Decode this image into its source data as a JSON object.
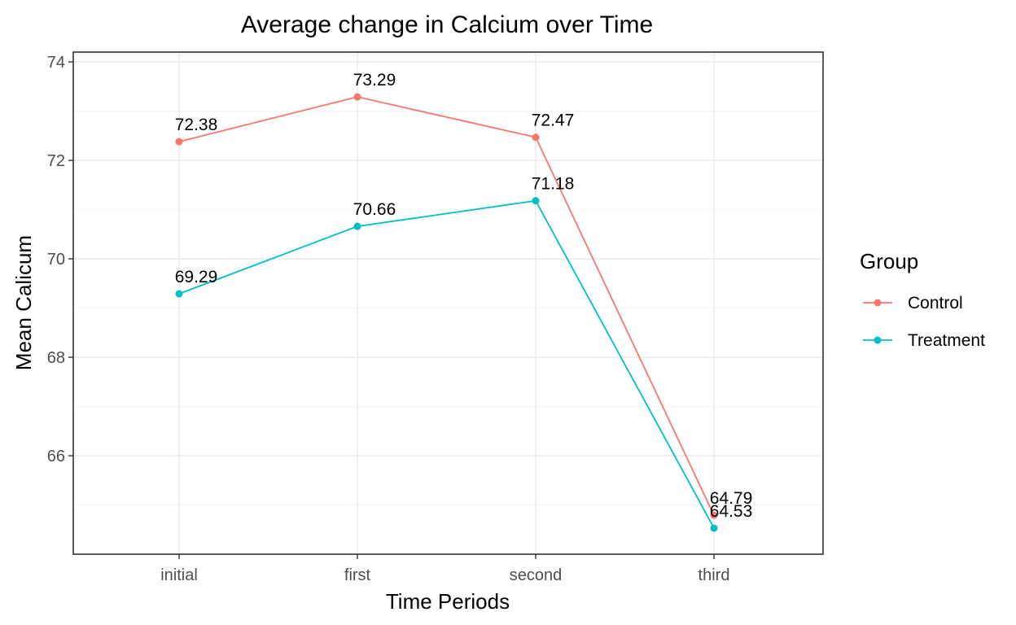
{
  "chart_data": {
    "type": "line",
    "title": "Average change in Calcium over Time",
    "xlabel": "Time Periods",
    "ylabel": "Mean Calicum",
    "categories": [
      "initial",
      "first",
      "second",
      "third"
    ],
    "ylim": [
      64.0,
      74.2
    ],
    "yticks": [
      66,
      68,
      70,
      72,
      74
    ],
    "grid": true,
    "legend": {
      "title": "Group",
      "position": "right"
    },
    "series": [
      {
        "name": "Control",
        "color": "#f8766d",
        "values": [
          72.38,
          73.29,
          72.47,
          64.79
        ],
        "labels": [
          "72.38",
          "73.29",
          "72.47",
          "64.79"
        ]
      },
      {
        "name": "Treatment",
        "color": "#00bfc4",
        "values": [
          69.29,
          70.66,
          71.18,
          64.53
        ],
        "labels": [
          "69.29",
          "70.66",
          "71.18",
          "64.53"
        ]
      }
    ]
  }
}
